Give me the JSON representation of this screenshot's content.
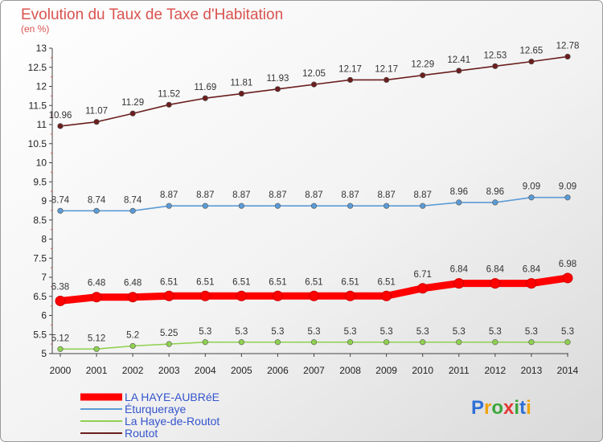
{
  "chart_data": {
    "type": "line",
    "title": "Evolution du Taux de Taxe d'Habitation",
    "ylabel": "(en %)",
    "xlabel": "",
    "x": [
      "2000",
      "2001",
      "2002",
      "2003",
      "2004",
      "2005",
      "2006",
      "2007",
      "2008",
      "2009",
      "2010",
      "2011",
      "2012",
      "2013",
      "2014"
    ],
    "ylim": [
      5,
      13
    ],
    "yticks": [
      "5",
      "5.5",
      "6",
      "6.5",
      "7",
      "7.5",
      "8",
      "8.5",
      "9",
      "9.5",
      "10",
      "10.5",
      "11",
      "11.5",
      "12",
      "12.5",
      "13"
    ],
    "grid": false,
    "legend_position": "bottom-left",
    "series": [
      {
        "name": "LA HAYE-AUBRéE",
        "color": "#ff0000",
        "values": [
          6.38,
          6.48,
          6.48,
          6.51,
          6.51,
          6.51,
          6.51,
          6.51,
          6.51,
          6.51,
          6.71,
          6.84,
          6.84,
          6.84,
          6.98
        ],
        "labels": [
          "6.38",
          "6.48",
          "6.48",
          "6.51",
          "6.51",
          "6.51",
          "6.51",
          "6.51",
          "6.51",
          "6.51",
          "6.71",
          "6.84",
          "6.84",
          "6.84",
          "6.98"
        ]
      },
      {
        "name": "Éturqueraye",
        "color": "#5b9bd5",
        "values": [
          8.74,
          8.74,
          8.74,
          8.87,
          8.87,
          8.87,
          8.87,
          8.87,
          8.87,
          8.87,
          8.87,
          8.96,
          8.96,
          9.09,
          9.09
        ],
        "labels": [
          "8.74",
          "8.74",
          "8.74",
          "8.87",
          "8.87",
          "8.87",
          "8.87",
          "8.87",
          "8.87",
          "8.87",
          "8.87",
          "8.96",
          "8.96",
          "9.09",
          "9.09"
        ]
      },
      {
        "name": "La Haye-de-Routot",
        "color": "#8fd14f",
        "values": [
          5.12,
          5.12,
          5.2,
          5.25,
          5.3,
          5.3,
          5.3,
          5.3,
          5.3,
          5.3,
          5.3,
          5.3,
          5.3,
          5.3,
          5.3
        ],
        "labels": [
          "5.12",
          "5.12",
          "5.2",
          "5.25",
          "5.3",
          "5.3",
          "5.3",
          "5.3",
          "5.3",
          "5.3",
          "5.3",
          "5.3",
          "5.3",
          "5.3",
          "5.3"
        ]
      },
      {
        "name": "Routot",
        "color": "#6b1e1e",
        "values": [
          10.96,
          11.07,
          11.29,
          11.52,
          11.69,
          11.81,
          11.93,
          12.05,
          12.17,
          12.17,
          12.29,
          12.41,
          12.53,
          12.65,
          12.78
        ],
        "labels": [
          "10.96",
          "11.07",
          "11.29",
          "11.52",
          "11.69",
          "11.81",
          "11.93",
          "12.05",
          "12.17",
          "12.17",
          "12.29",
          "12.41",
          "12.53",
          "12.65",
          "12.78"
        ]
      }
    ]
  },
  "logo": {
    "text": "Proxiti"
  }
}
